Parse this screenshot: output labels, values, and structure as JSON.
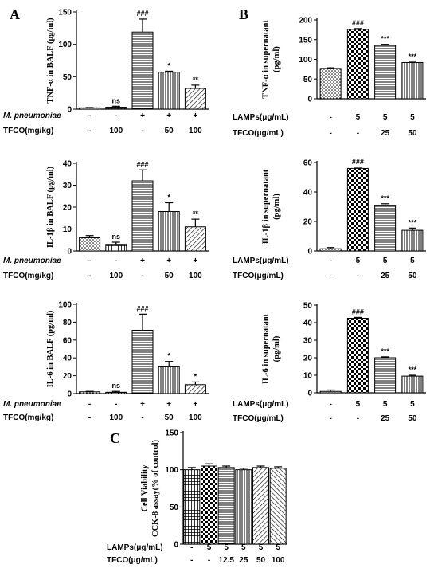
{
  "chart_data": [
    {
      "panel": "A",
      "type": "bar",
      "ylabel": "TNF-α in BALF (pg/ml)",
      "ylim": [
        0,
        150
      ],
      "yticks": [
        0,
        50,
        100,
        150
      ],
      "values": [
        2,
        3,
        119,
        57,
        32
      ],
      "errors": [
        0.5,
        1.5,
        20,
        1.5,
        5
      ],
      "sig": [
        "",
        "ns",
        "###",
        "*",
        "**"
      ],
      "patterns": [
        "dots",
        "grid",
        "hlines",
        "vlines",
        "diag"
      ],
      "rows": [
        {
          "label": "M. pneumoniae",
          "italic": true,
          "values": [
            "-",
            "-",
            "+",
            "+",
            "+"
          ]
        },
        {
          "label": "TFCO(mg/kg)",
          "italic": false,
          "values": [
            "-",
            "100",
            "-",
            "50",
            "100"
          ]
        }
      ]
    },
    {
      "panel": "",
      "type": "bar",
      "ylabel": "IL-1β in BALF (pg/ml)",
      "ylim": [
        0,
        40
      ],
      "yticks": [
        0,
        10,
        20,
        30,
        40
      ],
      "values": [
        6,
        3,
        32,
        18,
        11
      ],
      "errors": [
        1,
        1,
        5,
        4,
        3.5
      ],
      "sig": [
        "",
        "ns",
        "###",
        "*",
        "**"
      ],
      "patterns": [
        "dots",
        "grid",
        "hlines",
        "vlines",
        "diag"
      ],
      "rows": [
        {
          "label": "M. pneumoniae",
          "italic": true,
          "values": [
            "-",
            "-",
            "+",
            "+",
            "+"
          ]
        },
        {
          "label": "TFCO(mg/kg)",
          "italic": false,
          "values": [
            "-",
            "100",
            "-",
            "50",
            "100"
          ]
        }
      ]
    },
    {
      "panel": "",
      "type": "bar",
      "ylabel": "IL-6 in BALF (pg/ml)",
      "ylim": [
        0,
        100
      ],
      "yticks": [
        0,
        20,
        40,
        60,
        80,
        100
      ],
      "values": [
        2,
        1.5,
        71,
        30,
        10
      ],
      "errors": [
        0.5,
        1,
        18,
        6,
        3
      ],
      "sig": [
        "",
        "ns",
        "###",
        "*",
        "*"
      ],
      "patterns": [
        "dots",
        "grid",
        "hlines",
        "vlines",
        "diag"
      ],
      "rows": [
        {
          "label": "M. pneumoniae",
          "italic": true,
          "values": [
            "-",
            "-",
            "+",
            "+",
            "+"
          ]
        },
        {
          "label": "TFCO(mg/kg)",
          "italic": false,
          "values": [
            "-",
            "100",
            "-",
            "50",
            "100"
          ]
        }
      ]
    },
    {
      "panel": "B",
      "type": "bar",
      "ylabel": "TNF-α in supernatant (pg/ml)",
      "ylim": [
        0,
        200
      ],
      "yticks": [
        0,
        50,
        100,
        150,
        200
      ],
      "values": [
        77,
        176,
        136,
        92
      ],
      "errors": [
        1.5,
        2,
        2,
        1
      ],
      "sig": [
        "",
        "###",
        "***",
        "***"
      ],
      "patterns": [
        "dots",
        "checker",
        "hlines",
        "vlines"
      ],
      "rows": [
        {
          "label": "LAMPs(μg/mL)",
          "italic": false,
          "values": [
            "-",
            "5",
            "5",
            "5"
          ]
        },
        {
          "label": "TFCO(μg/mL)",
          "italic": false,
          "values": [
            "-",
            "-",
            "25",
            "50"
          ]
        }
      ]
    },
    {
      "panel": "",
      "type": "bar",
      "ylabel": "IL-1β in supernatant (pg/ml)",
      "ylim": [
        0,
        60
      ],
      "yticks": [
        0,
        20,
        40,
        60
      ],
      "values": [
        1.5,
        56,
        31,
        14
      ],
      "errors": [
        0.8,
        0.8,
        1,
        1.5
      ],
      "sig": [
        "",
        "###",
        "***",
        "***"
      ],
      "patterns": [
        "dots",
        "checker",
        "hlines",
        "vlines"
      ],
      "rows": [
        {
          "label": "LAMPs(μg/mL)",
          "italic": false,
          "values": [
            "-",
            "5",
            "5",
            "5"
          ]
        },
        {
          "label": "TFCO(μg/mL)",
          "italic": false,
          "values": [
            "-",
            "-",
            "25",
            "50"
          ]
        }
      ]
    },
    {
      "panel": "",
      "type": "bar",
      "ylabel": "IL-6 in supernatant (pg/ml)",
      "ylim": [
        0,
        50
      ],
      "yticks": [
        0,
        10,
        20,
        30,
        40,
        50
      ],
      "values": [
        0.8,
        42.5,
        20,
        9.5
      ],
      "errors": [
        0.8,
        0.5,
        0.5,
        0.5
      ],
      "sig": [
        "",
        "###",
        "***",
        "***"
      ],
      "patterns": [
        "dots",
        "checker",
        "hlines",
        "vlines"
      ],
      "rows": [
        {
          "label": "LAMPs(μg/mL)",
          "italic": false,
          "values": [
            "-",
            "5",
            "5",
            "5"
          ]
        },
        {
          "label": "TFCO(μg/mL)",
          "italic": false,
          "values": [
            "-",
            "-",
            "25",
            "50"
          ]
        }
      ]
    },
    {
      "panel": "C",
      "type": "bar",
      "ylabel": "Cell Viability CCK-8 assay(% of control)",
      "ylim": [
        0,
        150
      ],
      "yticks": [
        0,
        50,
        100,
        150
      ],
      "values": [
        100,
        105,
        103,
        100,
        103,
        102
      ],
      "errors": [
        3,
        3,
        2,
        2,
        2,
        2
      ],
      "sig": [
        "",
        "",
        "",
        "",
        "",
        ""
      ],
      "patterns": [
        "grid",
        "checker",
        "hlines",
        "vlines",
        "diag",
        "diag2"
      ],
      "rows": [
        {
          "label": "LAMPs(μg/mL)",
          "italic": false,
          "values": [
            "-",
            "5",
            "5",
            "5",
            "5",
            "5"
          ]
        },
        {
          "label": "TFCO(μg/mL)",
          "italic": false,
          "values": [
            "-",
            "-",
            "12.5",
            "25",
            "50",
            "100"
          ]
        }
      ]
    }
  ]
}
